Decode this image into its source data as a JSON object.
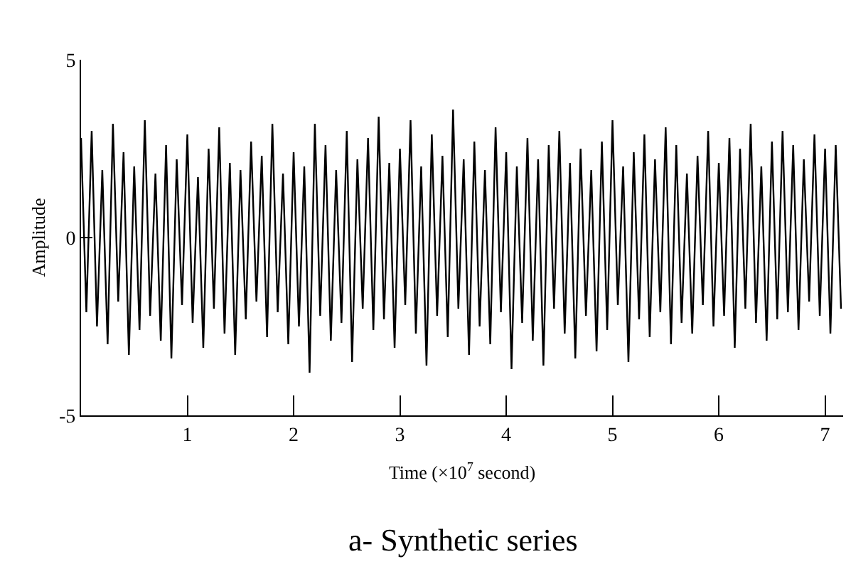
{
  "chart_data": {
    "type": "line",
    "title": "a- Synthetic series",
    "xlabel": "Time (×10$^{7}$ second)",
    "ylabel": "Amplitude",
    "x": [
      0,
      0.05,
      0.1,
      0.15,
      0.2,
      0.25,
      0.3,
      0.35,
      0.4,
      0.45,
      0.5,
      0.55,
      0.6,
      0.65,
      0.7,
      0.75,
      0.8,
      0.85,
      0.9,
      0.95,
      1,
      1.05,
      1.1,
      1.15,
      1.2,
      1.25,
      1.3,
      1.35,
      1.4,
      1.45,
      1.5,
      1.55,
      1.6,
      1.65,
      1.7,
      1.75,
      1.8,
      1.85,
      1.9,
      1.95,
      2,
      2.05,
      2.1,
      2.15,
      2.2,
      2.25,
      2.3,
      2.35,
      2.4,
      2.45,
      2.5,
      2.55,
      2.6,
      2.65,
      2.7,
      2.75,
      2.8,
      2.85,
      2.9,
      2.95,
      3,
      3.05,
      3.1,
      3.15,
      3.2,
      3.25,
      3.3,
      3.35,
      3.4,
      3.45,
      3.5,
      3.55,
      3.6,
      3.65,
      3.7,
      3.75,
      3.8,
      3.85,
      3.9,
      3.95,
      4,
      4.05,
      4.1,
      4.15,
      4.2,
      4.25,
      4.3,
      4.35,
      4.4,
      4.45,
      4.5,
      4.55,
      4.6,
      4.65,
      4.7,
      4.75,
      4.8,
      4.85,
      4.9,
      4.95,
      5,
      5.05,
      5.1,
      5.15,
      5.2,
      5.25,
      5.3,
      5.35,
      5.4,
      5.45,
      5.5,
      5.55,
      5.6,
      5.65,
      5.7,
      5.75,
      5.8,
      5.85,
      5.9,
      5.95,
      6,
      6.05,
      6.1,
      6.15,
      6.2,
      6.25,
      6.3,
      6.35,
      6.4,
      6.45,
      6.5,
      6.55,
      6.6,
      6.65,
      6.7,
      6.75,
      6.8,
      6.85,
      6.9,
      6.95,
      7,
      7.05,
      7.1,
      7.15
    ],
    "series": [
      {
        "color": "#000000",
        "values": [
          2.8,
          -2.1,
          3.0,
          -2.5,
          1.9,
          -3.0,
          3.2,
          -1.8,
          2.4,
          -3.3,
          2.0,
          -2.6,
          3.3,
          -2.2,
          1.8,
          -2.9,
          2.6,
          -3.4,
          2.2,
          -1.9,
          2.9,
          -2.4,
          1.7,
          -3.1,
          2.5,
          -2.0,
          3.1,
          -2.7,
          2.1,
          -3.3,
          1.9,
          -2.3,
          2.7,
          -1.8,
          2.3,
          -2.8,
          3.2,
          -2.1,
          1.8,
          -3.0,
          2.4,
          -2.5,
          2.0,
          -3.8,
          3.2,
          -2.2,
          2.6,
          -2.9,
          1.9,
          -2.4,
          3.0,
          -3.5,
          2.2,
          -2.0,
          2.8,
          -2.6,
          3.4,
          -2.3,
          2.1,
          -3.1,
          2.5,
          -1.9,
          3.3,
          -2.7,
          2.0,
          -3.6,
          2.9,
          -2.2,
          2.3,
          -2.8,
          3.6,
          -2.0,
          2.2,
          -3.3,
          2.7,
          -2.5,
          1.9,
          -3.0,
          3.1,
          -2.1,
          2.4,
          -3.7,
          2.0,
          -2.4,
          2.8,
          -2.9,
          2.2,
          -3.6,
          2.6,
          -2.0,
          3.0,
          -2.7,
          2.1,
          -3.4,
          2.5,
          -2.2,
          1.9,
          -3.2,
          2.7,
          -2.6,
          3.3,
          -1.9,
          2.0,
          -3.5,
          2.4,
          -2.3,
          2.9,
          -2.8,
          2.2,
          -2.1,
          3.1,
          -3.0,
          2.6,
          -2.4,
          1.8,
          -2.7,
          2.3,
          -1.9,
          3.0,
          -2.5,
          2.1,
          -2.2,
          2.8,
          -3.1,
          2.5,
          -2.0,
          3.2,
          -2.4,
          2.0,
          -2.9,
          2.7,
          -2.3,
          3.0,
          -2.1,
          2.6,
          -2.6,
          2.2,
          -1.8,
          2.9,
          -2.2,
          2.5,
          -2.7,
          2.6,
          -2.0
        ]
      }
    ],
    "xlim": [
      0,
      7.17
    ],
    "xticks": [
      1,
      2,
      3,
      4,
      5,
      6,
      7
    ],
    "ylim": [
      -5,
      5
    ],
    "yticks": [
      -5,
      0,
      5
    ],
    "marker": "none",
    "line_style": "solid"
  }
}
